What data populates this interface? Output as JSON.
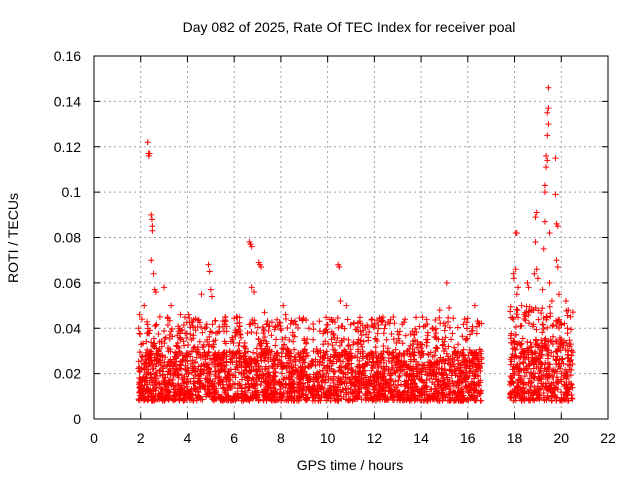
{
  "chart_data": {
    "type": "scatter",
    "title": "Day 082 of 2025, Rate Of TEC Index for receiver poal",
    "xlabel": "GPS time / hours",
    "ylabel": "ROTI / TECUs",
    "xlim": [
      0,
      22
    ],
    "ylim": [
      0,
      0.16
    ],
    "xticks": [
      0,
      2,
      4,
      6,
      8,
      10,
      12,
      14,
      16,
      18,
      20,
      22
    ],
    "yticks": [
      0,
      0.02,
      0.04,
      0.06,
      0.08,
      0.1,
      0.12,
      0.14,
      0.16
    ],
    "xtick_labels": [
      "0",
      "2",
      "4",
      "6",
      "8",
      "10",
      "12",
      "14",
      "16",
      "18",
      "20",
      "22"
    ],
    "ytick_labels": [
      "0",
      "0.02",
      "0.04",
      "0.06",
      "0.08",
      "0.1",
      "0.12",
      "0.14",
      "0.16"
    ],
    "grid": true,
    "marker": "plus",
    "color": "#ff0000",
    "data_spans": [
      {
        "start": 1.9,
        "end": 16.6,
        "dense_range": [
          0.008,
          0.03
        ],
        "peak": 0.045
      },
      {
        "start": 17.8,
        "end": 20.5,
        "dense_range": [
          0.008,
          0.035
        ],
        "peak": 0.05
      }
    ],
    "outliers": [
      {
        "x": 1.95,
        "y": 0.046
      },
      {
        "x": 2.05,
        "y": 0.044
      },
      {
        "x": 2.15,
        "y": 0.05
      },
      {
        "x": 2.3,
        "y": 0.122
      },
      {
        "x": 2.33,
        "y": 0.117
      },
      {
        "x": 2.35,
        "y": 0.116
      },
      {
        "x": 2.38,
        "y": 0.117
      },
      {
        "x": 2.45,
        "y": 0.09
      },
      {
        "x": 2.48,
        "y": 0.088
      },
      {
        "x": 2.5,
        "y": 0.085
      },
      {
        "x": 2.5,
        "y": 0.083
      },
      {
        "x": 2.45,
        "y": 0.07
      },
      {
        "x": 2.55,
        "y": 0.064
      },
      {
        "x": 2.6,
        "y": 0.057
      },
      {
        "x": 2.65,
        "y": 0.056
      },
      {
        "x": 3.0,
        "y": 0.058
      },
      {
        "x": 3.3,
        "y": 0.05
      },
      {
        "x": 3.7,
        "y": 0.046
      },
      {
        "x": 4.05,
        "y": 0.046
      },
      {
        "x": 4.6,
        "y": 0.055
      },
      {
        "x": 4.9,
        "y": 0.068
      },
      {
        "x": 4.95,
        "y": 0.065
      },
      {
        "x": 5.0,
        "y": 0.057
      },
      {
        "x": 5.05,
        "y": 0.054
      },
      {
        "x": 5.3,
        "y": 0.038
      },
      {
        "x": 6.1,
        "y": 0.045
      },
      {
        "x": 6.65,
        "y": 0.078
      },
      {
        "x": 6.7,
        "y": 0.077
      },
      {
        "x": 6.75,
        "y": 0.076
      },
      {
        "x": 6.75,
        "y": 0.058
      },
      {
        "x": 6.85,
        "y": 0.056
      },
      {
        "x": 7.05,
        "y": 0.069
      },
      {
        "x": 7.1,
        "y": 0.068
      },
      {
        "x": 7.15,
        "y": 0.067
      },
      {
        "x": 7.3,
        "y": 0.047
      },
      {
        "x": 8.1,
        "y": 0.05
      },
      {
        "x": 8.2,
        "y": 0.046
      },
      {
        "x": 9.2,
        "y": 0.04
      },
      {
        "x": 10.45,
        "y": 0.068
      },
      {
        "x": 10.5,
        "y": 0.067
      },
      {
        "x": 10.55,
        "y": 0.052
      },
      {
        "x": 10.8,
        "y": 0.05
      },
      {
        "x": 11.9,
        "y": 0.044
      },
      {
        "x": 12.3,
        "y": 0.043
      },
      {
        "x": 13.7,
        "y": 0.037
      },
      {
        "x": 14.8,
        "y": 0.048
      },
      {
        "x": 15.1,
        "y": 0.06
      },
      {
        "x": 15.2,
        "y": 0.049
      },
      {
        "x": 16.3,
        "y": 0.05
      },
      {
        "x": 16.5,
        "y": 0.042
      },
      {
        "x": 17.95,
        "y": 0.064
      },
      {
        "x": 17.97,
        "y": 0.062
      },
      {
        "x": 18.05,
        "y": 0.082
      },
      {
        "x": 18.1,
        "y": 0.082
      },
      {
        "x": 18.05,
        "y": 0.066
      },
      {
        "x": 18.15,
        "y": 0.058
      },
      {
        "x": 18.1,
        "y": 0.055
      },
      {
        "x": 18.3,
        "y": 0.05
      },
      {
        "x": 18.55,
        "y": 0.06
      },
      {
        "x": 18.6,
        "y": 0.058
      },
      {
        "x": 18.9,
        "y": 0.089
      },
      {
        "x": 18.95,
        "y": 0.091
      },
      {
        "x": 18.9,
        "y": 0.078
      },
      {
        "x": 18.95,
        "y": 0.066
      },
      {
        "x": 18.85,
        "y": 0.064
      },
      {
        "x": 19.0,
        "y": 0.062
      },
      {
        "x": 19.2,
        "y": 0.057
      },
      {
        "x": 19.25,
        "y": 0.075
      },
      {
        "x": 19.3,
        "y": 0.087
      },
      {
        "x": 19.3,
        "y": 0.1
      },
      {
        "x": 19.3,
        "y": 0.103
      },
      {
        "x": 19.35,
        "y": 0.111
      },
      {
        "x": 19.35,
        "y": 0.116
      },
      {
        "x": 19.4,
        "y": 0.125
      },
      {
        "x": 19.4,
        "y": 0.135
      },
      {
        "x": 19.45,
        "y": 0.137
      },
      {
        "x": 19.45,
        "y": 0.146
      },
      {
        "x": 19.45,
        "y": 0.13
      },
      {
        "x": 19.4,
        "y": 0.114
      },
      {
        "x": 19.5,
        "y": 0.082
      },
      {
        "x": 19.5,
        "y": 0.06
      },
      {
        "x": 19.6,
        "y": 0.052
      },
      {
        "x": 19.75,
        "y": 0.115
      },
      {
        "x": 19.75,
        "y": 0.099
      },
      {
        "x": 19.8,
        "y": 0.086
      },
      {
        "x": 19.85,
        "y": 0.085
      },
      {
        "x": 19.8,
        "y": 0.07
      },
      {
        "x": 19.85,
        "y": 0.067
      },
      {
        "x": 19.9,
        "y": 0.055
      },
      {
        "x": 20.2,
        "y": 0.052
      },
      {
        "x": 20.3,
        "y": 0.048
      },
      {
        "x": 20.4,
        "y": 0.045
      }
    ]
  }
}
